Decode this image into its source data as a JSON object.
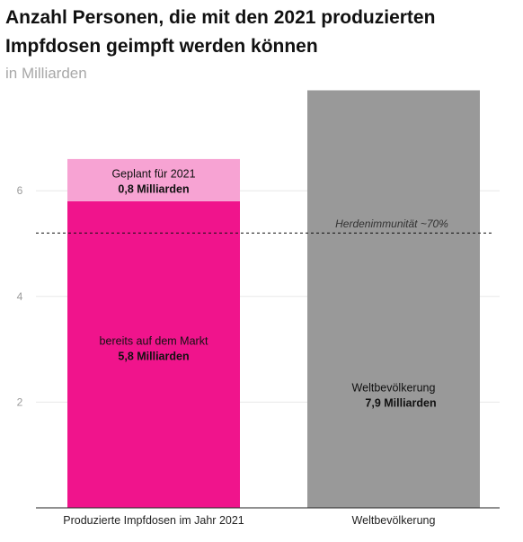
{
  "chart_data": {
    "type": "bar",
    "title": "Anzahl Personen, die mit den 2021 produzierten Impfdosen geimpft werden können",
    "subtitle": "in Milliarden",
    "categories": [
      "Produzierte Impfdosen im Jahr 2021",
      "Weltbevölkerung"
    ],
    "y_ticks": [
      "2",
      "4",
      "6"
    ],
    "ylim": [
      0,
      7.9
    ],
    "grid": true,
    "bars": [
      {
        "category": "Produzierte Impfdosen im Jahr 2021",
        "segments": [
          {
            "label": "bereits auf dem Markt",
            "value_label": "5,8 Milliarden",
            "value": 5.8,
            "color": "#f0148c"
          },
          {
            "label": "Geplant für 2021",
            "value_label": "0,8 Milliarden",
            "value": 0.8,
            "color": "#f7a3d3"
          }
        ]
      },
      {
        "category": "Weltbevölkerung",
        "segments": [
          {
            "label": "Weltbevölkerung",
            "value_label": "7,9 Milliarden",
            "value": 7.9,
            "color": "#999999"
          }
        ]
      }
    ],
    "reference_line": {
      "label": "Herdenimmunität ~70%",
      "value": 5.2,
      "style": "dashed"
    }
  }
}
